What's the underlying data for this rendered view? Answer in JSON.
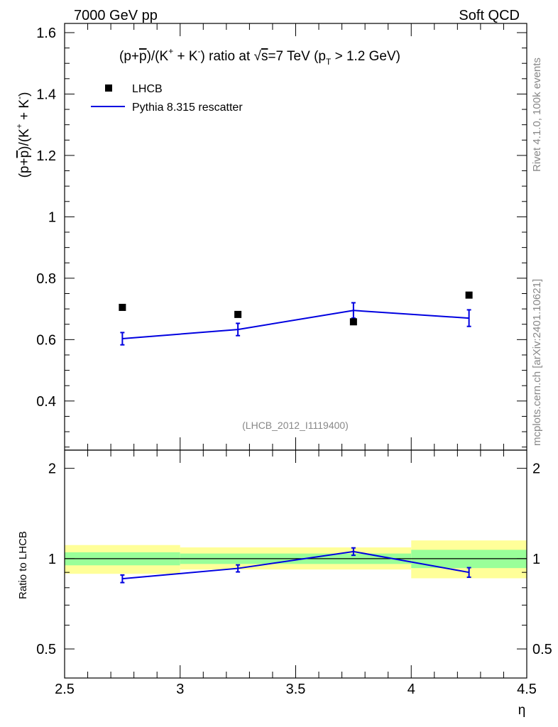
{
  "header": {
    "left": "7000 GeV pp",
    "right": "Soft QCD"
  },
  "side_text": {
    "rivet": "Rivet 4.1.0,  100k events",
    "site": "mcplots.cern.ch [arXiv:2401.10621]"
  },
  "watermark": "(LHCB_2012_I1119400)",
  "colors": {
    "mc": "#0000e0",
    "data": "#000000",
    "band_inner": "#99ff99",
    "band_outer": "#ffff99"
  },
  "chart_data": [
    {
      "type": "scatter",
      "panel": "main",
      "title_parts": {
        "a": "(p+",
        "pbar": "p",
        "b": ")/(K",
        "sup_plus": "+",
        "c": " + K",
        "sup_minus": "-",
        "d": ") ratio at ",
        "sqrt": "√",
        "e": "s",
        "f": "=7 TeV (p",
        "sub_T": "T",
        "g": " > 1.2 GeV)"
      },
      "ylabel_parts": {
        "a": "(p+",
        "pbar": "p",
        "b": ")/(K",
        "sup_plus": "+",
        "c": " + K",
        "sup_minus": "-",
        "d": ")"
      },
      "xlim": [
        2.5,
        4.5
      ],
      "ylim": [
        0.24,
        1.63
      ],
      "yticks": [
        0.4,
        0.6,
        0.8,
        1.0,
        1.2,
        1.4,
        1.6
      ],
      "ytick_labels": [
        "0.4",
        "0.6",
        "0.8",
        "1",
        "1.2",
        "1.4",
        "1.6"
      ],
      "legend": {
        "data_label": "LHCB",
        "mc_label": "Pythia 8.315 rescatter",
        "placement": "top-left"
      },
      "x": [
        2.75,
        3.25,
        3.75,
        4.25
      ],
      "series": [
        {
          "name": "LHCB",
          "values": [
            0.705,
            0.682,
            0.658,
            0.745
          ],
          "style": "marker"
        },
        {
          "name": "Pythia 8.315 rescatter",
          "values": [
            0.603,
            0.633,
            0.695,
            0.67
          ],
          "errors": [
            0.02,
            0.02,
            0.025,
            0.027
          ],
          "style": "line"
        }
      ]
    },
    {
      "type": "line",
      "panel": "ratio",
      "ylabel": "Ratio to LHCB",
      "xlabel": "η",
      "xlim": [
        2.5,
        4.5
      ],
      "ylim": [
        0.4,
        2.3
      ],
      "ylog": true,
      "yticks": [
        0.5,
        1,
        2
      ],
      "ytick_labels": [
        "0.5",
        "1",
        "2"
      ],
      "xticks": [
        2.5,
        3,
        3.5,
        4,
        4.5
      ],
      "xtick_labels": [
        "2.5",
        "3",
        "3.5",
        "4",
        "4.5"
      ],
      "bins": [
        [
          2.5,
          3.0
        ],
        [
          3.0,
          4.0
        ],
        [
          4.0,
          4.5
        ]
      ],
      "band_inner": [
        [
          0.95,
          1.05
        ],
        [
          0.96,
          1.04
        ],
        [
          0.93,
          1.07
        ]
      ],
      "band_outer": [
        [
          0.89,
          1.11
        ],
        [
          0.92,
          1.09
        ],
        [
          0.86,
          1.15
        ]
      ],
      "x": [
        2.75,
        3.25,
        3.75,
        4.25
      ],
      "values": [
        0.857,
        0.928,
        1.056,
        0.9
      ],
      "errors": [
        0.025,
        0.025,
        0.03,
        0.033
      ]
    }
  ]
}
